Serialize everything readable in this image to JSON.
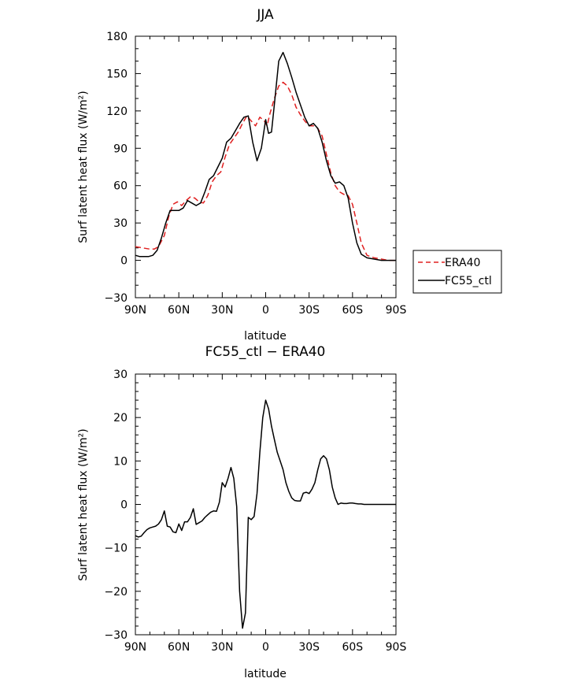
{
  "chart_data": [
    {
      "type": "line",
      "title": "JJA",
      "xlabel": "latitude",
      "ylabel": "Surf latent heat flux (W/m²)",
      "xlim": [
        90,
        -90
      ],
      "ylim": [
        -30,
        180
      ],
      "x_ticks": [
        90,
        60,
        30,
        0,
        -30,
        -60,
        -90
      ],
      "x_tick_labels": [
        "90N",
        "60N",
        "30N",
        "0",
        "30S",
        "60S",
        "90S"
      ],
      "y_ticks": [
        -30,
        0,
        30,
        60,
        90,
        120,
        150,
        180
      ],
      "y_tick_labels": [
        "−30",
        "0",
        "30",
        "60",
        "90",
        "120",
        "150",
        "180"
      ],
      "legend": {
        "placement": "right"
      },
      "series": [
        {
          "name": "ERA40",
          "color": "#e02020",
          "dash": true,
          "x": [
            90,
            85,
            80,
            77,
            74,
            70,
            67,
            64,
            61,
            58,
            55,
            52,
            49,
            46,
            43,
            40,
            37,
            34,
            31,
            28,
            25,
            22,
            19,
            16,
            13,
            10,
            7,
            4,
            1,
            -1,
            -3,
            -6,
            -9,
            -12,
            -15,
            -18,
            -21,
            -24,
            -27,
            -30,
            -33,
            -36,
            -39,
            -42,
            -45,
            -48,
            -51,
            -54,
            -57,
            -60,
            -63,
            -66,
            -70,
            -75,
            -80,
            -85,
            -90
          ],
          "y": [
            11,
            10,
            9,
            9,
            11,
            20,
            35,
            45,
            47,
            44,
            48,
            51,
            50,
            47,
            46,
            52,
            63,
            68,
            71,
            83,
            93,
            98,
            103,
            110,
            116,
            112,
            108,
            115,
            112,
            108,
            118,
            130,
            140,
            143,
            140,
            133,
            123,
            117,
            112,
            108,
            108,
            106,
            100,
            85,
            70,
            60,
            55,
            53,
            52,
            45,
            30,
            14,
            4,
            2,
            1,
            0,
            0
          ]
        },
        {
          "name": "FC55_ctl",
          "color": "#000000",
          "dash": false,
          "x": [
            90,
            87,
            84,
            81,
            78,
            75,
            72,
            69,
            66,
            63,
            60,
            57,
            54,
            51,
            48,
            45,
            42,
            39,
            36,
            33,
            30,
            27,
            24,
            21,
            18,
            15,
            12,
            9,
            6,
            3,
            0,
            -2,
            -4,
            -6,
            -9,
            -12,
            -15,
            -18,
            -21,
            -24,
            -27,
            -30,
            -33,
            -36,
            -39,
            -42,
            -45,
            -48,
            -51,
            -54,
            -57,
            -60,
            -63,
            -66,
            -70,
            -75,
            -80,
            -85,
            -90
          ],
          "y": [
            4,
            3,
            3,
            3,
            4,
            8,
            18,
            30,
            40,
            40,
            40,
            42,
            48,
            46,
            44,
            46,
            55,
            65,
            68,
            75,
            82,
            95,
            98,
            104,
            110,
            115,
            116,
            95,
            80,
            90,
            113,
            102,
            103,
            125,
            160,
            167,
            158,
            147,
            135,
            125,
            115,
            108,
            110,
            106,
            95,
            80,
            68,
            62,
            63,
            60,
            50,
            30,
            14,
            5,
            2,
            1,
            0,
            0,
            0
          ]
        }
      ]
    },
    {
      "type": "line",
      "title": "FC55_ctl − ERA40",
      "xlabel": "latitude",
      "ylabel": "Surf latent heat flux (W/m²)",
      "xlim": [
        90,
        -90
      ],
      "ylim": [
        -30,
        30
      ],
      "x_ticks": [
        90,
        60,
        30,
        0,
        -30,
        -60,
        -90
      ],
      "x_tick_labels": [
        "90N",
        "60N",
        "30N",
        "0",
        "30S",
        "60S",
        "90S"
      ],
      "y_ticks": [
        -30,
        -20,
        -10,
        0,
        10,
        20,
        30
      ],
      "y_tick_labels": [
        "−30",
        "−20",
        "−10",
        "0",
        "10",
        "20",
        "30"
      ],
      "series": [
        {
          "color": "#000000",
          "dash": false,
          "x": [
            90,
            88,
            86,
            84,
            82,
            80,
            78,
            76,
            74,
            72,
            70,
            68,
            66,
            64,
            62,
            60,
            58,
            56,
            54,
            52,
            50,
            48,
            46,
            44,
            42,
            40,
            38,
            36,
            34,
            32,
            30,
            28,
            26,
            24,
            22,
            20,
            18,
            16,
            14,
            12,
            10,
            8,
            6,
            4,
            2,
            0,
            -2,
            -4,
            -6,
            -8,
            -10,
            -12,
            -14,
            -16,
            -18,
            -20,
            -22,
            -24,
            -26,
            -28,
            -30,
            -32,
            -34,
            -36,
            -38,
            -40,
            -42,
            -44,
            -46,
            -48,
            -50,
            -52,
            -54,
            -56,
            -58,
            -60,
            -62,
            -64,
            -66,
            -68,
            -70,
            -72,
            -74,
            -76,
            -78,
            -80,
            -82,
            -84,
            -86,
            -88,
            -90
          ],
          "y": [
            -7.2,
            -7.5,
            -7.3,
            -6.5,
            -5.8,
            -5.4,
            -5.2,
            -5.0,
            -4.5,
            -3.5,
            -1.5,
            -5.0,
            -5.2,
            -6.3,
            -6.5,
            -4.5,
            -6.0,
            -4.0,
            -4.0,
            -3.0,
            -1.0,
            -4.6,
            -4.2,
            -3.8,
            -3.0,
            -2.4,
            -1.8,
            -1.5,
            -1.6,
            0.5,
            5.0,
            4.0,
            6.0,
            8.5,
            6.0,
            -0.5,
            -20,
            -28.5,
            -25,
            -3.0,
            -3.5,
            -2.8,
            2.5,
            12.0,
            20.0,
            24.0,
            22.0,
            18.0,
            15.0,
            12.0,
            10.0,
            8.0,
            5.0,
            3.0,
            1.5,
            0.9,
            0.8,
            0.8,
            2.6,
            2.8,
            2.5,
            3.5,
            5.0,
            8.0,
            10.5,
            11.2,
            10.5,
            8.0,
            4.0,
            1.5,
            0.0,
            0.3,
            0.2,
            0.2,
            0.3,
            0.3,
            0.2,
            0.1,
            0.1,
            0.0,
            0.0,
            0.0,
            0.0,
            0.0,
            0.0,
            0.0,
            0.0,
            0.0,
            0.0,
            0.0,
            0.0
          ]
        }
      ]
    }
  ]
}
